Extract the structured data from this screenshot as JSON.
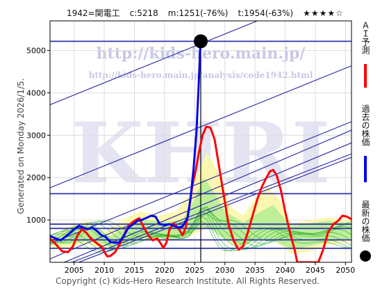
{
  "header": {
    "code_name": "1942=関電工",
    "current": "c:5218",
    "middle": "m:1251(-76%)",
    "target": "t:1954(-63%)",
    "rating": "★★★★☆"
  },
  "side_text": "Generated on Monday 2026/1/5.",
  "copyright": "Copyright (c) Kids-Hero Research Institute. All Rights Reserved.",
  "watermark": {
    "url1": "http://kids-hero.main.jp/",
    "url2": "http://kids-hero.main.jp/analysis/code1942.html",
    "big": "KHRI"
  },
  "legend": {
    "ai": "ＡＩ予測",
    "past": "過去の株価",
    "latest": "最新の株価"
  },
  "colors": {
    "ai": "#ff0000",
    "past": "#0000ee",
    "latest": "#000000",
    "band": "#3333aa"
  },
  "chart_data": {
    "type": "line",
    "title": "",
    "xlabel": "",
    "ylabel": "",
    "xlim": [
      2001,
      2051
    ],
    "ylim": [
      0,
      5700
    ],
    "x_ticks": [
      2005,
      2010,
      2015,
      2020,
      2025,
      2030,
      2035,
      2040,
      2045,
      2050
    ],
    "y_ticks": [
      1000,
      2000,
      3000,
      4000,
      5000
    ],
    "latest_point": {
      "x": 2026.0,
      "y": 5218
    },
    "horizontal_levels": [
      5218,
      1620,
      900,
      800,
      530,
      330
    ],
    "trend_lines": [
      {
        "x1": 2001,
        "y1": 3720,
        "x2": 2051,
        "y2": 6600
      },
      {
        "x1": 2001,
        "y1": 1760,
        "x2": 2051,
        "y2": 4640
      },
      {
        "x1": 2001,
        "y1": 440,
        "x2": 2051,
        "y2": 3320
      },
      {
        "x1": 2001,
        "y1": 80,
        "x2": 2051,
        "y2": 3120
      },
      {
        "x1": 2001,
        "y1": -200,
        "x2": 2051,
        "y2": 2560
      },
      {
        "x1": 2001,
        "y1": -260,
        "x2": 2051,
        "y2": 2480
      },
      {
        "x1": 2001,
        "y1": -140,
        "x2": 2051,
        "y2": 2820
      }
    ],
    "series": [
      {
        "name": "過去の株価",
        "points": [
          [
            2001.0,
            620
          ],
          [
            2002.0,
            560
          ],
          [
            2002.8,
            520
          ],
          [
            2003.5,
            600
          ],
          [
            2004.2,
            680
          ],
          [
            2005.0,
            780
          ],
          [
            2005.8,
            860
          ],
          [
            2006.5,
            820
          ],
          [
            2007.2,
            780
          ],
          [
            2008.0,
            820
          ],
          [
            2008.8,
            740
          ],
          [
            2009.5,
            640
          ],
          [
            2010.2,
            600
          ],
          [
            2011.0,
            480
          ],
          [
            2011.8,
            460
          ],
          [
            2012.5,
            470
          ],
          [
            2013.3,
            640
          ],
          [
            2014.0,
            820
          ],
          [
            2014.8,
            900
          ],
          [
            2015.5,
            980
          ],
          [
            2016.2,
            1000
          ],
          [
            2017.0,
            1050
          ],
          [
            2017.8,
            1100
          ],
          [
            2018.5,
            1080
          ],
          [
            2019.2,
            900
          ],
          [
            2020.0,
            880
          ],
          [
            2020.8,
            900
          ],
          [
            2021.5,
            860
          ],
          [
            2022.3,
            820
          ],
          [
            2023.0,
            850
          ],
          [
            2023.8,
            1050
          ],
          [
            2024.3,
            1500
          ],
          [
            2024.8,
            2200
          ],
          [
            2025.3,
            3100
          ],
          [
            2025.6,
            4000
          ],
          [
            2025.9,
            5000
          ],
          [
            2026.0,
            5218
          ]
        ]
      },
      {
        "name": "ＡＩ予測",
        "points": [
          [
            2001.0,
            560
          ],
          [
            2002.0,
            420
          ],
          [
            2003.0,
            260
          ],
          [
            2004.0,
            240
          ],
          [
            2004.8,
            380
          ],
          [
            2005.5,
            620
          ],
          [
            2006.3,
            780
          ],
          [
            2007.0,
            700
          ],
          [
            2007.8,
            560
          ],
          [
            2008.5,
            480
          ],
          [
            2009.0,
            420
          ],
          [
            2009.5,
            380
          ],
          [
            2010.0,
            250
          ],
          [
            2010.5,
            140
          ],
          [
            2011.0,
            150
          ],
          [
            2011.8,
            240
          ],
          [
            2012.6,
            440
          ],
          [
            2013.5,
            720
          ],
          [
            2014.3,
            900
          ],
          [
            2015.0,
            980
          ],
          [
            2015.8,
            1040
          ],
          [
            2016.5,
            840
          ],
          [
            2017.3,
            640
          ],
          [
            2018.0,
            520
          ],
          [
            2018.8,
            560
          ],
          [
            2019.3,
            460
          ],
          [
            2019.8,
            340
          ],
          [
            2020.3,
            460
          ],
          [
            2020.8,
            760
          ],
          [
            2021.5,
            920
          ],
          [
            2022.3,
            800
          ],
          [
            2023.0,
            640
          ],
          [
            2023.5,
            820
          ],
          [
            2024.0,
            1200
          ],
          [
            2024.6,
            1800
          ],
          [
            2025.2,
            2200
          ],
          [
            2025.7,
            2600
          ],
          [
            2026.3,
            3000
          ],
          [
            2026.9,
            3200
          ],
          [
            2027.6,
            3180
          ],
          [
            2028.3,
            2900
          ],
          [
            2029.0,
            2300
          ],
          [
            2029.8,
            1600
          ],
          [
            2030.6,
            900
          ],
          [
            2031.5,
            500
          ],
          [
            2032.3,
            300
          ],
          [
            2033.0,
            380
          ],
          [
            2033.8,
            700
          ],
          [
            2034.6,
            1100
          ],
          [
            2035.4,
            1500
          ],
          [
            2036.2,
            1800
          ],
          [
            2036.9,
            2000
          ],
          [
            2037.5,
            2150
          ],
          [
            2038.0,
            2180
          ],
          [
            2038.6,
            2050
          ],
          [
            2039.3,
            1700
          ],
          [
            2040.0,
            1200
          ],
          [
            2040.8,
            700
          ],
          [
            2041.6,
            280
          ],
          [
            2042.0,
            0
          ],
          [
            2045.5,
            0
          ],
          [
            2046.3,
            300
          ],
          [
            2047.1,
            700
          ],
          [
            2048.0,
            900
          ],
          [
            2048.8,
            980
          ],
          [
            2049.5,
            1100
          ],
          [
            2050.2,
            1080
          ],
          [
            2051.0,
            1020
          ]
        ]
      }
    ]
  }
}
